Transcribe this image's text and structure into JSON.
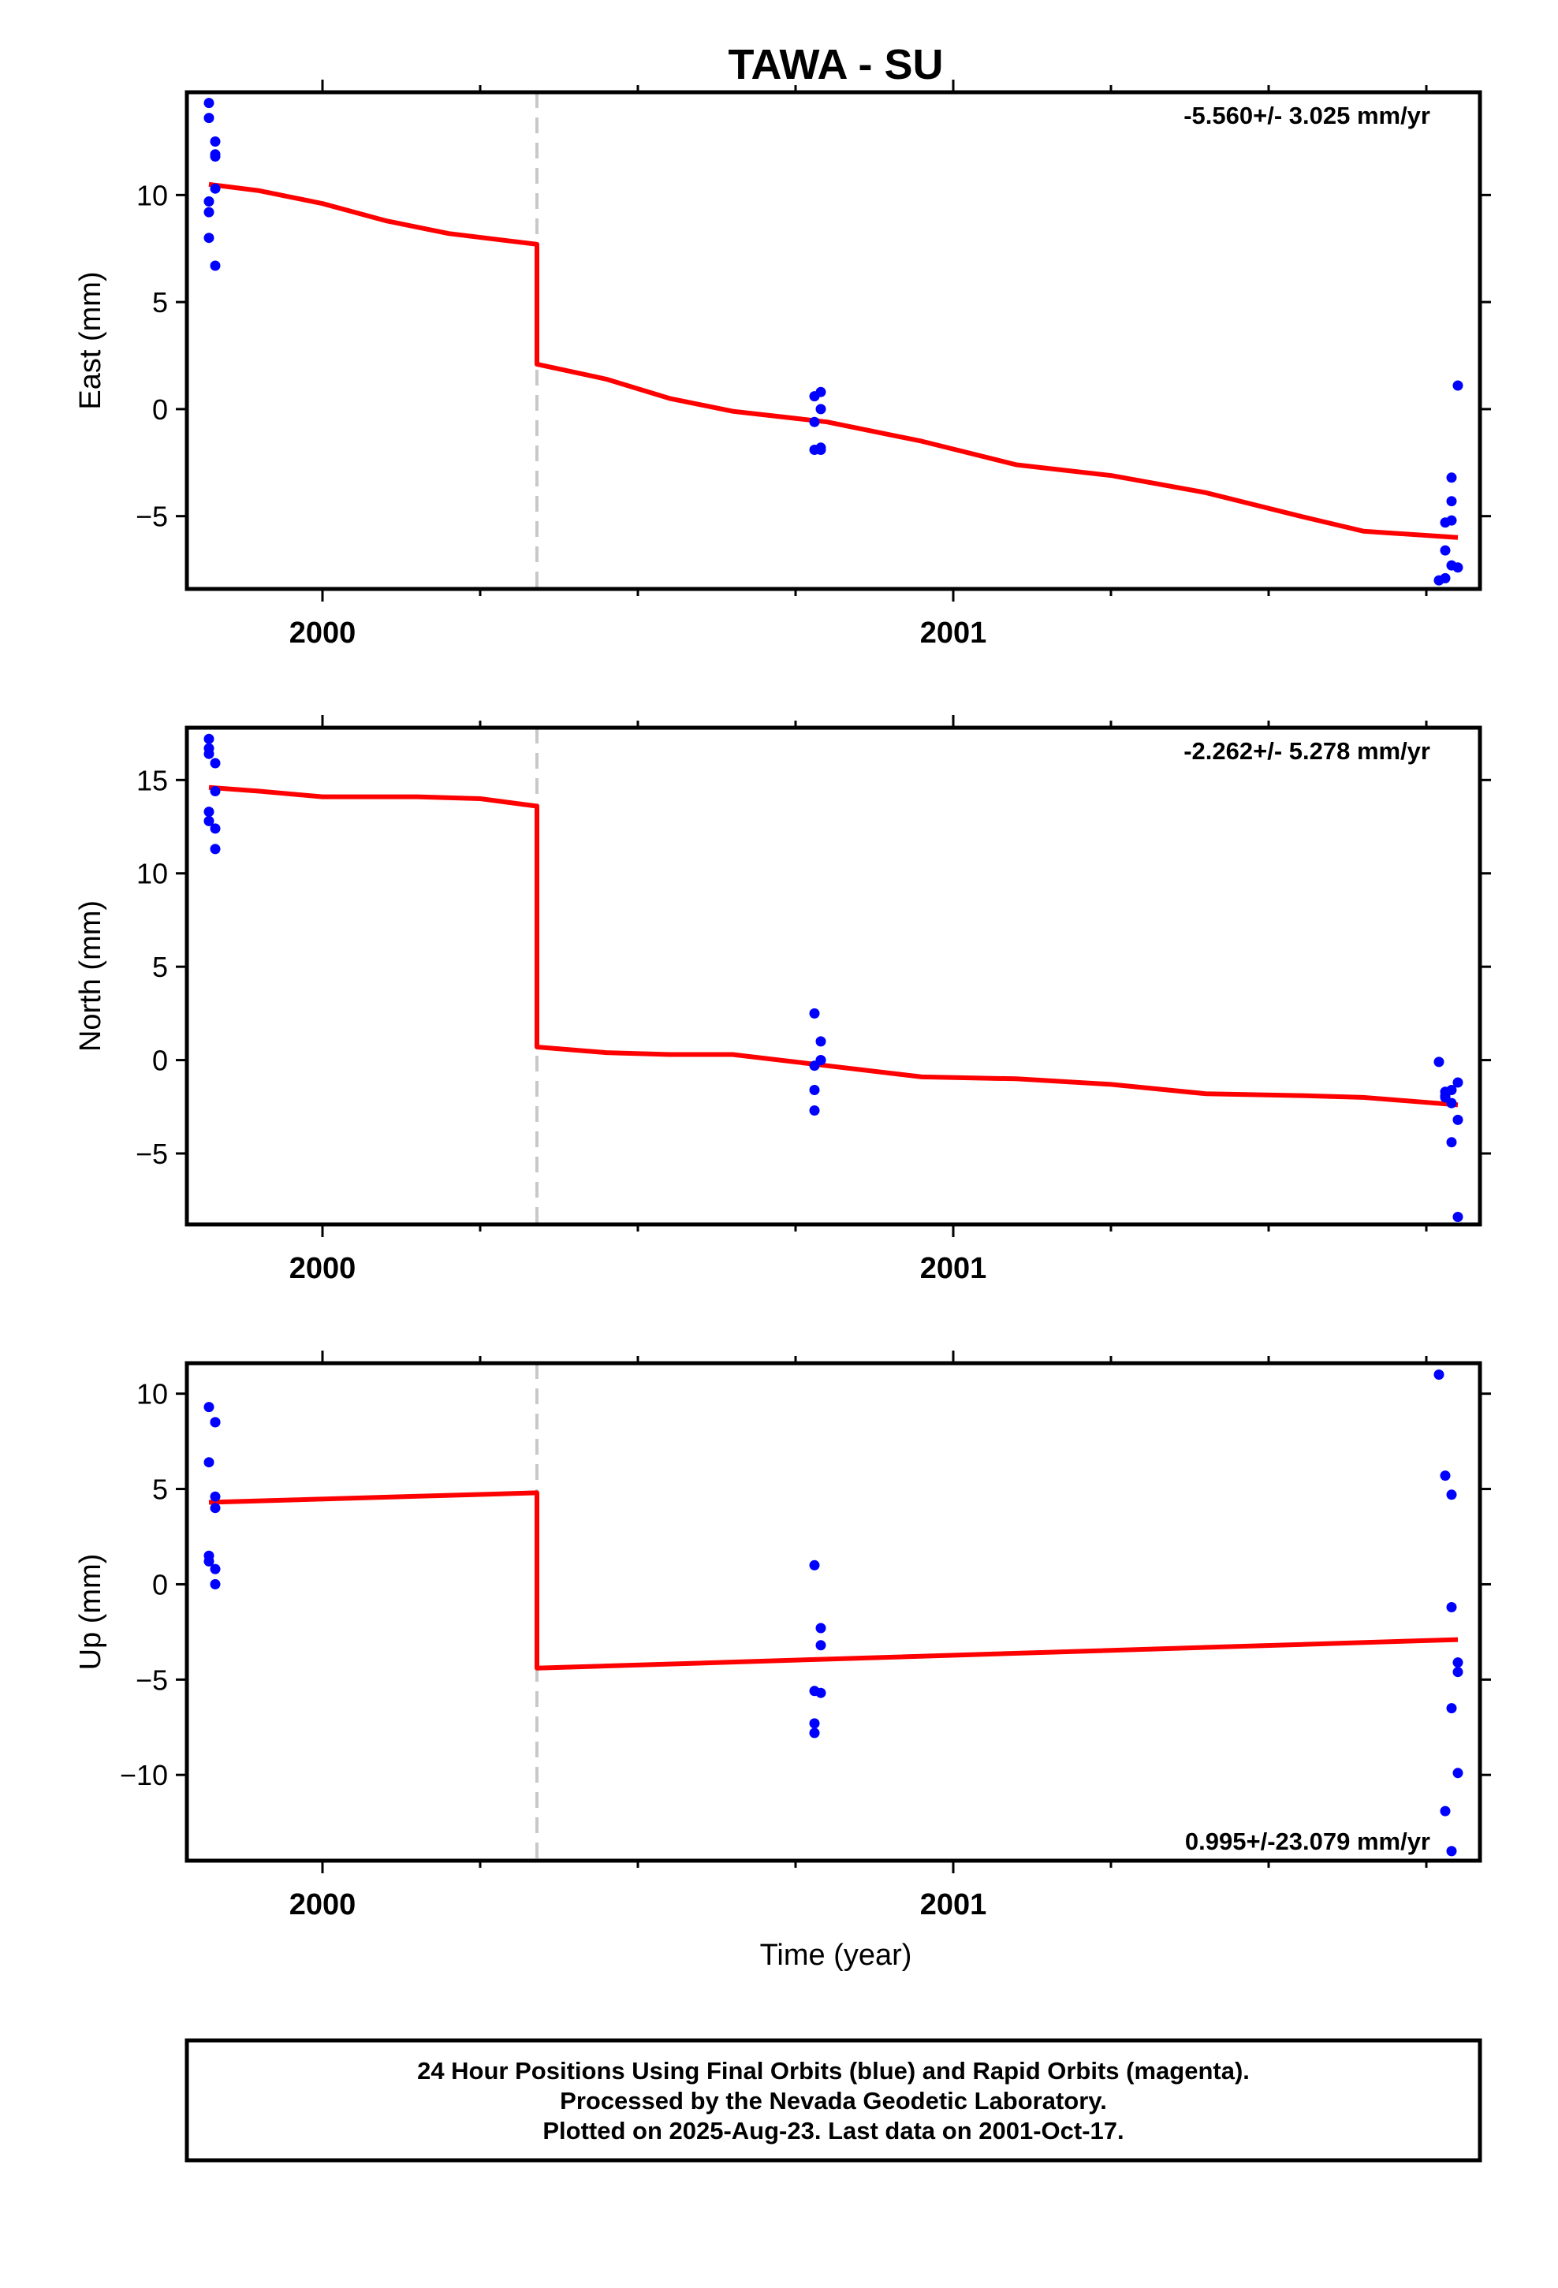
{
  "colors": {
    "final_orbits": "#0000ff",
    "model": "#ff0000",
    "offset_line": "#c8c8c8",
    "frame": "#000000"
  },
  "title": "TAWA - SU",
  "xlabel": "Time (year)",
  "footer": {
    "line1": "24 Hour Positions Using Final Orbits (blue) and Rapid Orbits (magenta).",
    "line2": "Processed by the Nevada Geodetic Laboratory.",
    "line3": "Plotted on 2025-Aug-23. Last data on 2001-Oct-17."
  },
  "chart_data": [
    {
      "type": "scatter",
      "component": "east",
      "ylabel": "East (mm)",
      "rate": "-5.560+/- 3.025 mm/yr",
      "rate_position": "top-right",
      "xlim": [
        1999.785,
        2001.835
      ],
      "ylim": [
        -8.4,
        14.8
      ],
      "yticks": [
        -5,
        0,
        5,
        10
      ],
      "xticks_major": [
        2000,
        2001
      ],
      "xticks_minor": [
        2000.25,
        2000.5,
        2000.75,
        2001.25,
        2001.5,
        2001.75
      ],
      "offset_epoch": 2000.34,
      "points": [
        [
          1999.82,
          14.3
        ],
        [
          1999.82,
          13.6
        ],
        [
          1999.82,
          8.0
        ],
        [
          1999.82,
          9.2
        ],
        [
          1999.82,
          9.7
        ],
        [
          1999.83,
          10.3
        ],
        [
          1999.83,
          11.8
        ],
        [
          1999.83,
          12.5
        ],
        [
          1999.83,
          11.9
        ],
        [
          1999.83,
          6.7
        ],
        [
          2000.78,
          0.6
        ],
        [
          2000.79,
          0.8
        ],
        [
          2000.79,
          0.0
        ],
        [
          2000.78,
          -0.6
        ],
        [
          2000.78,
          -1.9
        ],
        [
          2000.79,
          -1.8
        ],
        [
          2000.79,
          -1.9
        ],
        [
          2001.77,
          -8.0
        ],
        [
          2001.78,
          -7.9
        ],
        [
          2001.78,
          -6.6
        ],
        [
          2001.78,
          -5.3
        ],
        [
          2001.79,
          -5.2
        ],
        [
          2001.79,
          -7.3
        ],
        [
          2001.79,
          -4.3
        ],
        [
          2001.79,
          -3.2
        ],
        [
          2001.8,
          -7.4
        ],
        [
          2001.8,
          1.1
        ]
      ],
      "model": [
        [
          1999.82,
          10.5
        ],
        [
          1999.9,
          10.2
        ],
        [
          2000.0,
          9.6
        ],
        [
          2000.1,
          8.8
        ],
        [
          2000.2,
          8.2
        ],
        [
          2000.34,
          7.7
        ],
        [
          2000.34,
          2.1
        ],
        [
          2000.45,
          1.4
        ],
        [
          2000.55,
          0.5
        ],
        [
          2000.65,
          -0.1
        ],
        [
          2000.8,
          -0.6
        ],
        [
          2000.95,
          -1.5
        ],
        [
          2001.1,
          -2.6
        ],
        [
          2001.25,
          -3.1
        ],
        [
          2001.4,
          -3.9
        ],
        [
          2001.55,
          -5.0
        ],
        [
          2001.65,
          -5.7
        ],
        [
          2001.8,
          -6.0
        ]
      ]
    },
    {
      "type": "scatter",
      "component": "north",
      "ylabel": "North (mm)",
      "rate": "-2.262+/- 5.278 mm/yr",
      "rate_position": "top-right",
      "xlim": [
        1999.785,
        2001.835
      ],
      "ylim": [
        -8.8,
        17.8
      ],
      "yticks": [
        -5,
        0,
        5,
        10,
        15
      ],
      "xticks_major": [
        2000,
        2001
      ],
      "xticks_minor": [
        2000.25,
        2000.5,
        2000.75,
        2001.25,
        2001.5,
        2001.75
      ],
      "offset_epoch": 2000.34,
      "points": [
        [
          1999.82,
          16.4
        ],
        [
          1999.82,
          16.7
        ],
        [
          1999.82,
          17.2
        ],
        [
          1999.82,
          13.3
        ],
        [
          1999.82,
          12.8
        ],
        [
          1999.83,
          12.4
        ],
        [
          1999.83,
          11.3
        ],
        [
          1999.83,
          15.9
        ],
        [
          1999.83,
          14.4
        ],
        [
          2000.78,
          2.5
        ],
        [
          2000.79,
          1.0
        ],
        [
          2000.79,
          0.0
        ],
        [
          2000.79,
          0.0
        ],
        [
          2000.78,
          -1.6
        ],
        [
          2000.78,
          -2.7
        ],
        [
          2000.78,
          -0.3
        ],
        [
          2001.77,
          -0.1
        ],
        [
          2001.78,
          -1.9
        ],
        [
          2001.78,
          -2.0
        ],
        [
          2001.78,
          -1.7
        ],
        [
          2001.79,
          -1.6
        ],
        [
          2001.79,
          -2.3
        ],
        [
          2001.79,
          -4.4
        ],
        [
          2001.8,
          -3.2
        ],
        [
          2001.8,
          -1.2
        ],
        [
          2001.8,
          -8.4
        ]
      ],
      "model": [
        [
          1999.82,
          14.6
        ],
        [
          1999.9,
          14.4
        ],
        [
          2000.0,
          14.1
        ],
        [
          2000.15,
          14.1
        ],
        [
          2000.25,
          14.0
        ],
        [
          2000.34,
          13.6
        ],
        [
          2000.34,
          0.7
        ],
        [
          2000.45,
          0.4
        ],
        [
          2000.55,
          0.3
        ],
        [
          2000.65,
          0.3
        ],
        [
          2000.8,
          -0.3
        ],
        [
          2000.95,
          -0.9
        ],
        [
          2001.1,
          -1.0
        ],
        [
          2001.25,
          -1.3
        ],
        [
          2001.4,
          -1.8
        ],
        [
          2001.55,
          -1.9
        ],
        [
          2001.65,
          -2.0
        ],
        [
          2001.8,
          -2.4
        ]
      ]
    },
    {
      "type": "scatter",
      "component": "up",
      "ylabel": "Up (mm)",
      "rate": "0.995+/-23.079 mm/yr",
      "rate_position": "bottom-right",
      "xlim": [
        1999.785,
        2001.835
      ],
      "ylim": [
        -14.5,
        11.6
      ],
      "yticks": [
        -10,
        -5,
        0,
        5,
        10
      ],
      "xticks_major": [
        2000,
        2001
      ],
      "xticks_minor": [
        2000.25,
        2000.5,
        2000.75,
        2001.25,
        2001.5,
        2001.75
      ],
      "offset_epoch": 2000.34,
      "points": [
        [
          1999.82,
          9.3
        ],
        [
          1999.82,
          6.4
        ],
        [
          1999.82,
          1.5
        ],
        [
          1999.82,
          1.2
        ],
        [
          1999.83,
          4.0
        ],
        [
          1999.83,
          4.6
        ],
        [
          1999.83,
          8.5
        ],
        [
          1999.83,
          8.5
        ],
        [
          1999.83,
          0.0
        ],
        [
          1999.83,
          0.8
        ],
        [
          2000.78,
          1.0
        ],
        [
          2000.79,
          -2.3
        ],
        [
          2000.79,
          -3.2
        ],
        [
          2000.78,
          -5.6
        ],
        [
          2000.79,
          -5.7
        ],
        [
          2000.78,
          -7.3
        ],
        [
          2000.78,
          -7.8
        ],
        [
          2001.77,
          11.0
        ],
        [
          2001.78,
          5.7
        ],
        [
          2001.79,
          4.7
        ],
        [
          2001.79,
          -1.2
        ],
        [
          2001.8,
          -4.1
        ],
        [
          2001.8,
          -4.6
        ],
        [
          2001.79,
          -6.5
        ],
        [
          2001.8,
          -9.9
        ],
        [
          2001.78,
          -11.9
        ],
        [
          2001.79,
          -14.0
        ]
      ],
      "model": [
        [
          1999.82,
          4.3
        ],
        [
          2000.34,
          4.8
        ],
        [
          2000.34,
          -4.4
        ],
        [
          2001.8,
          -2.9
        ]
      ]
    }
  ]
}
